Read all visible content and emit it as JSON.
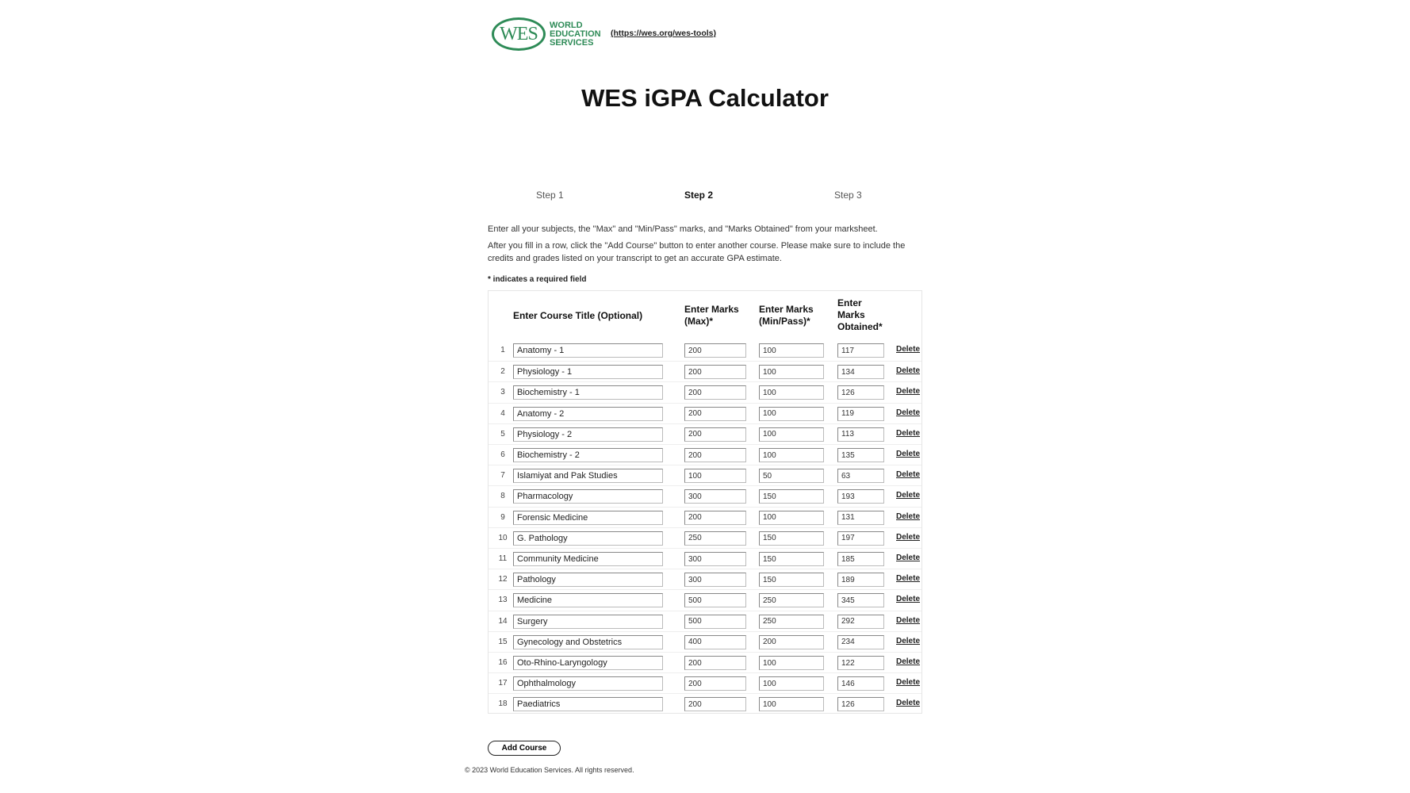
{
  "header": {
    "logo_mark": "WES",
    "logo_words": [
      "WORLD",
      "EDUCATION",
      "SERVICES"
    ],
    "link": "(https://wes.org/wes-tools)",
    "title_light": "WES",
    "title_bold": "iGPA Calculator",
    "brand_color": "#2e8b57"
  },
  "steps": [
    {
      "label": "Step 1",
      "active": false
    },
    {
      "label": "Step 2",
      "active": true
    },
    {
      "label": "Step 3",
      "active": false
    }
  ],
  "instructions": {
    "line1": "Enter all your subjects, the \"Max\" and \"Min/Pass\" marks, and \"Marks Obtained\" from your marksheet.",
    "line2": "After you fill in a row, click the \"Add Course\" button to enter another course. Please make sure to include the credits and grades listed on your transcript to get an accurate GPA estimate.",
    "required_note": "* indicates a required field"
  },
  "table": {
    "headers": {
      "course": "Enter Course Title (Optional)",
      "max": "Enter Marks (Max)*",
      "min": "Enter Marks (Min/Pass)*",
      "obtained": "Enter Marks Obtained*"
    },
    "delete_label": "Delete",
    "rows": [
      {
        "num": "1",
        "course": "Anatomy - 1",
        "max": "200",
        "min": "100",
        "obtained": "117"
      },
      {
        "num": "2",
        "course": "Physiology - 1",
        "max": "200",
        "min": "100",
        "obtained": "134"
      },
      {
        "num": "3",
        "course": "Biochemistry - 1",
        "max": "200",
        "min": "100",
        "obtained": "126"
      },
      {
        "num": "4",
        "course": "Anatomy - 2",
        "max": "200",
        "min": "100",
        "obtained": "119"
      },
      {
        "num": "5",
        "course": "Physiology - 2",
        "max": "200",
        "min": "100",
        "obtained": "113"
      },
      {
        "num": "6",
        "course": "Biochemistry - 2",
        "max": "200",
        "min": "100",
        "obtained": "135"
      },
      {
        "num": "7",
        "course": "Islamiyat and Pak Studies",
        "max": "100",
        "min": "50",
        "obtained": "63"
      },
      {
        "num": "8",
        "course": "Pharmacology",
        "max": "300",
        "min": "150",
        "obtained": "193"
      },
      {
        "num": "9",
        "course": "Forensic Medicine",
        "max": "200",
        "min": "100",
        "obtained": "131"
      },
      {
        "num": "10",
        "course": "G. Pathology",
        "max": "250",
        "min": "150",
        "obtained": "197"
      },
      {
        "num": "11",
        "course": "Community Medicine",
        "max": "300",
        "min": "150",
        "obtained": "185"
      },
      {
        "num": "12",
        "course": "Pathology",
        "max": "300",
        "min": "150",
        "obtained": "189"
      },
      {
        "num": "13",
        "course": "Medicine",
        "max": "500",
        "min": "250",
        "obtained": "345"
      },
      {
        "num": "14",
        "course": "Surgery",
        "max": "500",
        "min": "250",
        "obtained": "292"
      },
      {
        "num": "15",
        "course": "Gynecology and Obstetrics",
        "max": "400",
        "min": "200",
        "obtained": "234"
      },
      {
        "num": "16",
        "course": "Oto-Rhino-Laryngology",
        "max": "200",
        "min": "100",
        "obtained": "122"
      },
      {
        "num": "17",
        "course": "Ophthalmology",
        "max": "200",
        "min": "100",
        "obtained": "146"
      },
      {
        "num": "18",
        "course": "Paediatrics",
        "max": "200",
        "min": "100",
        "obtained": "126"
      }
    ]
  },
  "add_course_label": "Add Course",
  "footer": "© 2023 World Education Services. All rights reserved."
}
